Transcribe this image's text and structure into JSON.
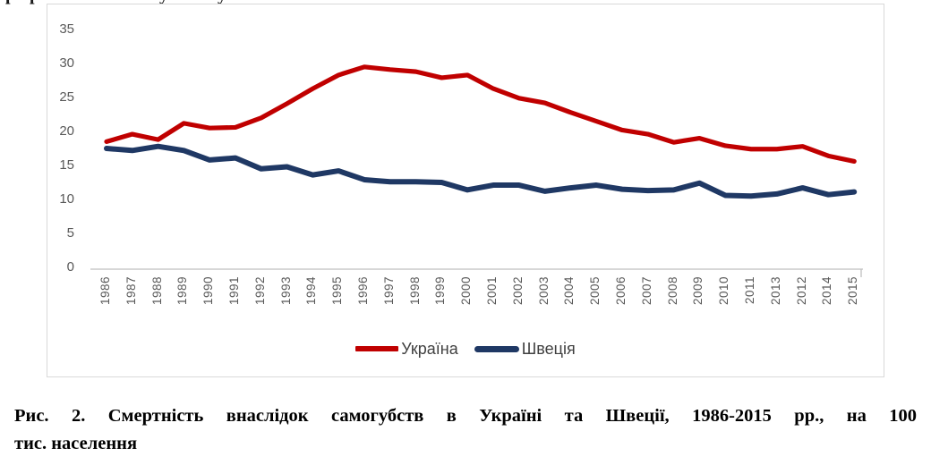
{
  "page": {
    "clipped_text_fragments": [
      {
        "char": "р",
        "x": 6
      },
      {
        "char": "р",
        "x": 33
      },
      {
        "char": "у",
        "x": 178
      },
      {
        "char": "у",
        "x": 243
      }
    ]
  },
  "chart_data": {
    "type": "line",
    "title": "",
    "xlabel": "",
    "ylabel": "",
    "ylim": [
      0,
      35
    ],
    "y_ticks": [
      0,
      5,
      10,
      15,
      20,
      25,
      30,
      35
    ],
    "grid": false,
    "legend_position": "bottom",
    "categories": [
      "1986",
      "1987",
      "1988",
      "1989",
      "1990",
      "1991",
      "1992",
      "1993",
      "1994",
      "1995",
      "1996",
      "1997",
      "1998",
      "1999",
      "2000",
      "2001",
      "2002",
      "2003",
      "2004",
      "2005",
      "2006",
      "2007",
      "2008",
      "2009",
      "2010",
      "2011",
      "2013",
      "2012",
      "2014",
      "2015"
    ],
    "series": [
      {
        "name": "Україна",
        "color": "#c00000",
        "values": [
          18.5,
          19.6,
          18.8,
          21.2,
          20.5,
          20.6,
          22.0,
          24.1,
          26.3,
          28.3,
          29.5,
          29.1,
          28.8,
          27.9,
          28.3,
          26.3,
          24.9,
          24.2,
          22.8,
          21.5,
          20.2,
          19.6,
          18.4,
          19.0,
          17.9,
          17.4,
          17.4,
          17.8,
          16.4,
          15.6
        ]
      },
      {
        "name": "Швеція",
        "color": "#1f3864",
        "values": [
          17.5,
          17.2,
          17.8,
          17.2,
          15.8,
          16.1,
          14.5,
          14.8,
          13.6,
          14.2,
          12.9,
          12.6,
          12.6,
          12.5,
          11.4,
          12.1,
          12.1,
          11.2,
          11.7,
          12.1,
          11.5,
          11.3,
          11.4,
          12.4,
          10.6,
          10.5,
          10.8,
          11.7,
          10.7,
          11.1
        ]
      }
    ],
    "axis_color": "#bfbfbf",
    "tick_label_color": "#595959"
  },
  "caption": {
    "line1": "Рис. 2. Смертність внаслідок самогубств в Україні та Швеції, 1986-2015 рр., на 100",
    "line2": "тис. населення"
  }
}
